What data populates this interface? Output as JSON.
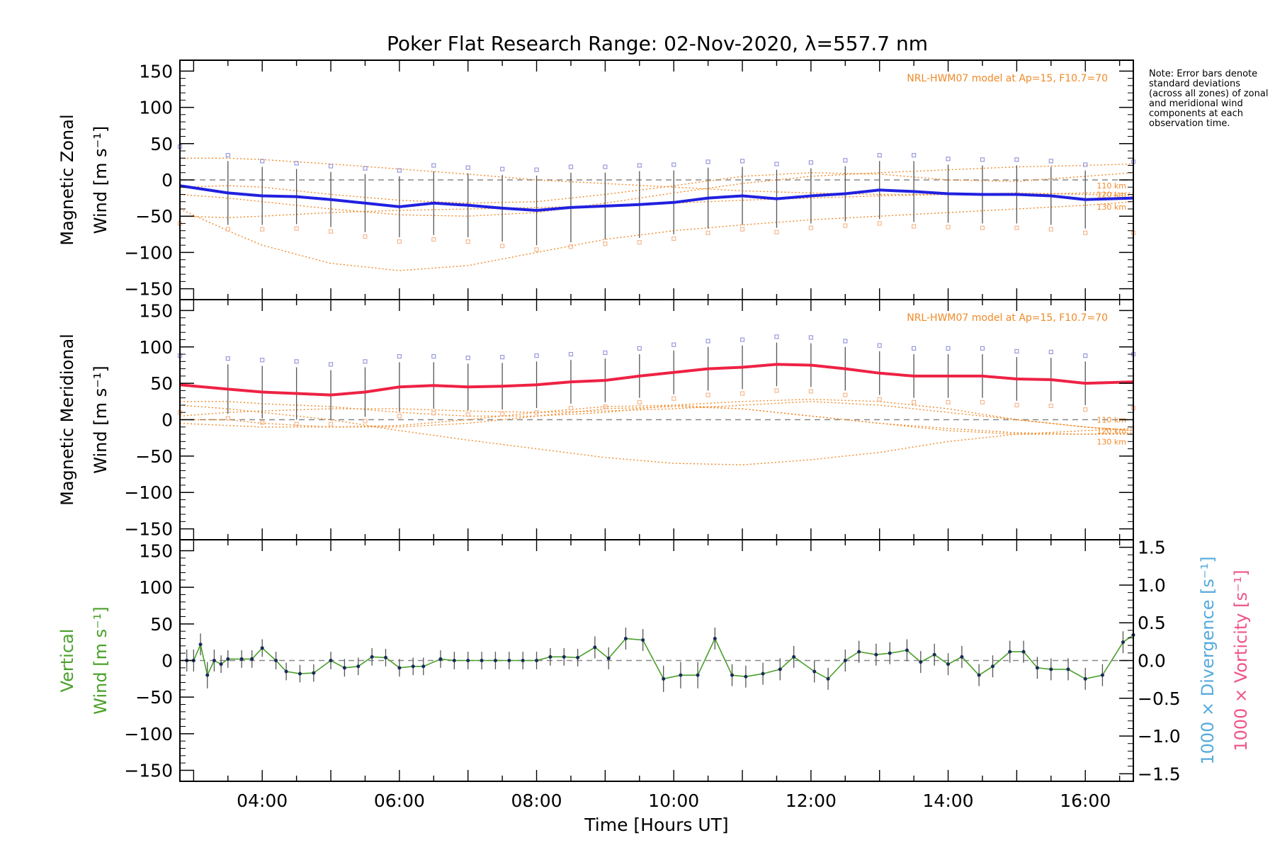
{
  "title": "Poker Flat Research Range: 02-Nov-2020, λ=557.7 nm",
  "note": "Note: Error bars denote standard deviations (across all zones) of zonal and meridional wind components at each observation time.",
  "model_label": "NRL-HWM07 model at Ap=15, F10.7=70",
  "altitude_labels": [
    "110 km",
    "120 km",
    "130 km"
  ],
  "colors": {
    "zonal": "#2020e0",
    "meridional": "#ee2244",
    "vertical": "#4aa02a",
    "model": "#f08a28",
    "divergence": "#55aadd",
    "vorticity": "#ee5588",
    "zone_points_blue": "#9999dd",
    "zone_points_orange": "#f6b890"
  },
  "chart_data": [
    {
      "type": "line",
      "panel": "zonal",
      "ylabel": [
        "Magnetic Zonal",
        "Wind [m s⁻¹]"
      ],
      "ylim": [
        -165,
        165
      ],
      "yticks": [
        150,
        100,
        50,
        0,
        -50,
        -100,
        -150
      ],
      "xlim": [
        2.8,
        16.7
      ],
      "x": [
        2.8,
        3.5,
        4.0,
        4.5,
        5.0,
        5.5,
        6.0,
        6.5,
        7.0,
        7.5,
        8.0,
        8.5,
        9.0,
        9.5,
        10.0,
        10.5,
        11.0,
        11.5,
        12.0,
        12.5,
        13.0,
        13.5,
        14.0,
        14.5,
        15.0,
        15.5,
        16.0,
        16.7
      ],
      "series": [
        {
          "values": [
            -8,
            -18,
            -22,
            -23,
            -27,
            -32,
            -37,
            -32,
            -35,
            -39,
            -42,
            -38,
            -36,
            -34,
            -31,
            -25,
            -22,
            -26,
            -22,
            -19,
            -14,
            -16,
            -19,
            -20,
            -20,
            -22,
            -27,
            -25
          ],
          "sd": [
            46,
            44,
            40,
            38,
            38,
            40,
            42,
            44,
            44,
            46,
            48,
            48,
            46,
            46,
            44,
            42,
            40,
            40,
            38,
            38,
            40,
            42,
            40,
            40,
            40,
            40,
            40,
            42
          ]
        }
      ],
      "model": {
        "x": [
          2.8,
          3.5,
          4.0,
          5.0,
          6.0,
          7.0,
          8.0,
          9.0,
          10.0,
          11.0,
          12.0,
          13.0,
          14.0,
          15.0,
          16.0,
          16.7
        ],
        "series": [
          {
            "values": [
              -10,
              -8,
              -10,
              -20,
              -28,
              -32,
              -30,
              -20,
              -8,
              5,
              10,
              8,
              0,
              -2,
              5,
              10
            ]
          },
          {
            "values": [
              -20,
              -25,
              -30,
              -40,
              -48,
              -50,
              -45,
              -32,
              -18,
              -5,
              5,
              10,
              14,
              18,
              20,
              22
            ]
          },
          {
            "values": [
              -40,
              -70,
              -90,
              -115,
              -125,
              -118,
              -100,
              -82,
              -70,
              -62,
              -55,
              -50,
              -45,
              -40,
              -35,
              -30
            ]
          },
          {
            "values": [
              30,
              30,
              28,
              22,
              15,
              8,
              0,
              -5,
              -10,
              -15,
              -18,
              -20,
              -20,
              -18,
              -20,
              -22
            ]
          },
          {
            "values": [
              -50,
              -52,
              -50,
              -45,
              -42,
              -40,
              -38,
              -36,
              -32,
              -28,
              -25,
              -22,
              -20,
              -20,
              -18,
              -18
            ]
          }
        ]
      }
    },
    {
      "type": "line",
      "panel": "meridional",
      "ylabel": [
        "Magnetic Meridional",
        "Wind [m s⁻¹]"
      ],
      "ylim": [
        -165,
        165
      ],
      "yticks": [
        150,
        100,
        50,
        0,
        -50,
        -100,
        -150
      ],
      "xlim": [
        2.8,
        16.7
      ],
      "x": [
        2.8,
        3.5,
        4.0,
        4.5,
        5.0,
        5.5,
        6.0,
        6.5,
        7.0,
        7.5,
        8.0,
        8.5,
        9.0,
        9.5,
        10.0,
        10.5,
        11.0,
        11.5,
        12.0,
        12.5,
        13.0,
        13.5,
        14.0,
        14.5,
        15.0,
        15.5,
        16.0,
        16.7
      ],
      "series": [
        {
          "values": [
            48,
            42,
            38,
            36,
            34,
            38,
            45,
            47,
            45,
            46,
            48,
            52,
            54,
            60,
            65,
            70,
            72,
            76,
            75,
            70,
            64,
            60,
            60,
            60,
            56,
            55,
            50,
            52
          ],
          "sd": [
            32,
            34,
            36,
            36,
            34,
            34,
            34,
            32,
            32,
            32,
            32,
            30,
            30,
            30,
            30,
            30,
            30,
            30,
            30,
            30,
            30,
            30,
            30,
            30,
            30,
            30,
            30,
            30
          ]
        }
      ],
      "model": {
        "x": [
          2.8,
          3.5,
          4.0,
          5.0,
          6.0,
          7.0,
          8.0,
          9.0,
          10.0,
          11.0,
          12.0,
          13.0,
          14.0,
          15.0,
          16.0,
          16.7
        ],
        "series": [
          {
            "values": [
              5,
              10,
              12,
              15,
              15,
              12,
              10,
              12,
              15,
              20,
              25,
              20,
              10,
              0,
              -10,
              -15
            ]
          },
          {
            "values": [
              0,
              0,
              -5,
              -10,
              -10,
              -5,
              5,
              15,
              18,
              15,
              5,
              -5,
              -15,
              -20,
              -20,
              -18
            ]
          },
          {
            "values": [
              20,
              15,
              10,
              0,
              -15,
              -28,
              -40,
              -52,
              -60,
              -62,
              -55,
              -45,
              -30,
              -20,
              -15,
              -12
            ]
          },
          {
            "values": [
              25,
              25,
              22,
              18,
              10,
              5,
              5,
              10,
              20,
              25,
              28,
              25,
              15,
              0,
              -10,
              -15
            ]
          },
          {
            "values": [
              -5,
              -8,
              -10,
              -10,
              -8,
              0,
              10,
              18,
              20,
              15,
              5,
              -5,
              -12,
              -18,
              -20,
              -20
            ]
          }
        ]
      }
    },
    {
      "type": "line",
      "panel": "vertical",
      "ylabel": [
        "Vertical",
        "Wind [m s⁻¹]"
      ],
      "y2label": [
        "1000 × Divergence [s⁻¹]",
        "1000 × Vorticity [s⁻¹]"
      ],
      "ylim": [
        -165,
        165
      ],
      "yticks": [
        150,
        100,
        50,
        0,
        -50,
        -100,
        -150
      ],
      "y2lim": [
        -1.6,
        1.6
      ],
      "y2ticks": [
        "1.5",
        "1.0",
        "0.5",
        "0.0",
        "−0.5",
        "−1.0",
        "−1.5"
      ],
      "y2tickvalues": [
        1.5,
        1.0,
        0.5,
        0.0,
        -0.5,
        -1.0,
        -1.5
      ],
      "xlim": [
        2.8,
        16.7
      ],
      "xticks": [
        "04:00",
        "06:00",
        "08:00",
        "10:00",
        "12:00",
        "14:00",
        "16:00"
      ],
      "xtickvalues": [
        4,
        6,
        8,
        10,
        12,
        14,
        16
      ],
      "xlabel": "Time [Hours UT]",
      "x": [
        2.9,
        3.0,
        3.1,
        3.2,
        3.3,
        3.4,
        3.5,
        3.7,
        3.85,
        4.0,
        4.2,
        4.35,
        4.55,
        4.75,
        5.0,
        5.2,
        5.4,
        5.6,
        5.8,
        6.0,
        6.2,
        6.35,
        6.6,
        6.8,
        7.0,
        7.2,
        7.4,
        7.6,
        7.8,
        8.0,
        8.2,
        8.4,
        8.6,
        8.85,
        9.05,
        9.3,
        9.55,
        9.85,
        10.1,
        10.35,
        10.6,
        10.85,
        11.05,
        11.3,
        11.55,
        11.75,
        12.05,
        12.25,
        12.5,
        12.7,
        12.95,
        13.15,
        13.4,
        13.6,
        13.8,
        14.0,
        14.2,
        14.45,
        14.65,
        14.9,
        15.1,
        15.3,
        15.5,
        15.75,
        16.0,
        16.25,
        16.55,
        16.7
      ],
      "series": [
        {
          "values": [
            0,
            0,
            22,
            -20,
            0,
            -5,
            2,
            2,
            2,
            17,
            0,
            -15,
            -18,
            -17,
            0,
            -10,
            -8,
            5,
            4,
            -10,
            -8,
            -8,
            2,
            0,
            0,
            0,
            0,
            0,
            0,
            0,
            5,
            5,
            4,
            18,
            3,
            30,
            28,
            -25,
            -20,
            -20,
            30,
            -20,
            -22,
            -18,
            -12,
            5,
            -15,
            -25,
            0,
            12,
            8,
            10,
            14,
            -2,
            8,
            -5,
            5,
            -20,
            -8,
            12,
            12,
            -10,
            -12,
            -12,
            -25,
            -20,
            25,
            35
          ],
          "sd": [
            15,
            15,
            15,
            18,
            15,
            12,
            12,
            12,
            12,
            12,
            12,
            12,
            12,
            12,
            12,
            12,
            12,
            12,
            12,
            12,
            12,
            12,
            12,
            12,
            12,
            12,
            12,
            12,
            12,
            12,
            12,
            12,
            12,
            15,
            15,
            15,
            15,
            18,
            18,
            18,
            15,
            15,
            15,
            15,
            15,
            15,
            15,
            15,
            15,
            15,
            15,
            15,
            15,
            15,
            15,
            15,
            15,
            15,
            15,
            15,
            15,
            15,
            15,
            15,
            15,
            15,
            15,
            15
          ]
        }
      ]
    }
  ]
}
